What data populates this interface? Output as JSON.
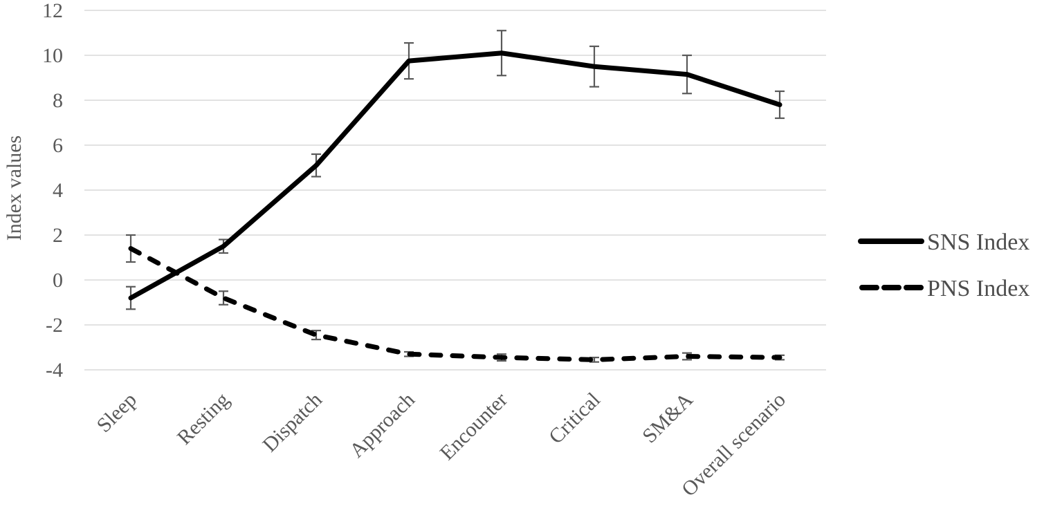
{
  "chart_data": {
    "type": "line",
    "title": "",
    "xlabel": "",
    "ylabel": "Index values",
    "categories": [
      "Sleep",
      "Resting",
      "Dispatch",
      "Approach",
      "Encounter",
      "Critical",
      "SM&A",
      "Overall scenario"
    ],
    "series": [
      {
        "name": "SNS Index",
        "line_style": "solid",
        "color": "#000000",
        "values": [
          -0.8,
          1.5,
          5.1,
          9.75,
          10.1,
          9.5,
          9.15,
          7.8
        ],
        "error_bars": [
          0.5,
          0.3,
          0.5,
          0.8,
          1.0,
          0.9,
          0.85,
          0.6
        ]
      },
      {
        "name": "PNS Index",
        "line_style": "dashed",
        "color": "#000000",
        "values": [
          1.4,
          -0.8,
          -2.45,
          -3.3,
          -3.45,
          -3.55,
          -3.4,
          -3.45
        ],
        "error_bars": [
          0.6,
          0.3,
          0.2,
          0.1,
          0.15,
          0.1,
          0.15,
          0.1
        ]
      }
    ],
    "y_axis": {
      "min": -4,
      "max": 12,
      "tick_step": 2,
      "tick_labels": [
        "-4",
        "-2",
        "0",
        "2",
        "4",
        "6",
        "8",
        "10",
        "12"
      ]
    },
    "grid": true,
    "legend_position": "right",
    "colors": {
      "axis_text": "#595959",
      "gridline": "#d9d9d9",
      "error_bar": "#595959",
      "series_line": "#000000"
    }
  }
}
